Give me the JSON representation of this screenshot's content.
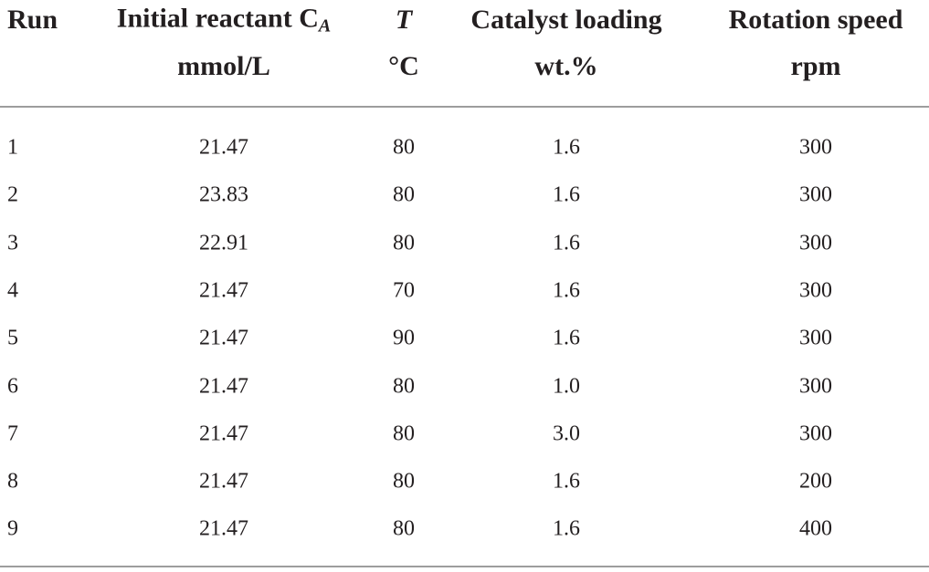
{
  "table": {
    "columns": [
      {
        "title": "Run"
      },
      {
        "title": "Initial reactant C",
        "subscript": "A",
        "unit": "mmol/L"
      },
      {
        "title": "T",
        "unit": "°C"
      },
      {
        "title": "Catalyst loading",
        "unit": "wt.%"
      },
      {
        "title": "Rotation speed",
        "unit": "rpm"
      }
    ],
    "rows": [
      [
        "1",
        "21.47",
        "80",
        "1.6",
        "300"
      ],
      [
        "2",
        "23.83",
        "80",
        "1.6",
        "300"
      ],
      [
        "3",
        "22.91",
        "80",
        "1.6",
        "300"
      ],
      [
        "4",
        "21.47",
        "70",
        "1.6",
        "300"
      ],
      [
        "5",
        "21.47",
        "90",
        "1.6",
        "300"
      ],
      [
        "6",
        "21.47",
        "80",
        "1.0",
        "300"
      ],
      [
        "7",
        "21.47",
        "80",
        "3.0",
        "300"
      ],
      [
        "8",
        "21.47",
        "80",
        "1.6",
        "200"
      ],
      [
        "9",
        "21.47",
        "80",
        "1.6",
        "400"
      ]
    ]
  }
}
